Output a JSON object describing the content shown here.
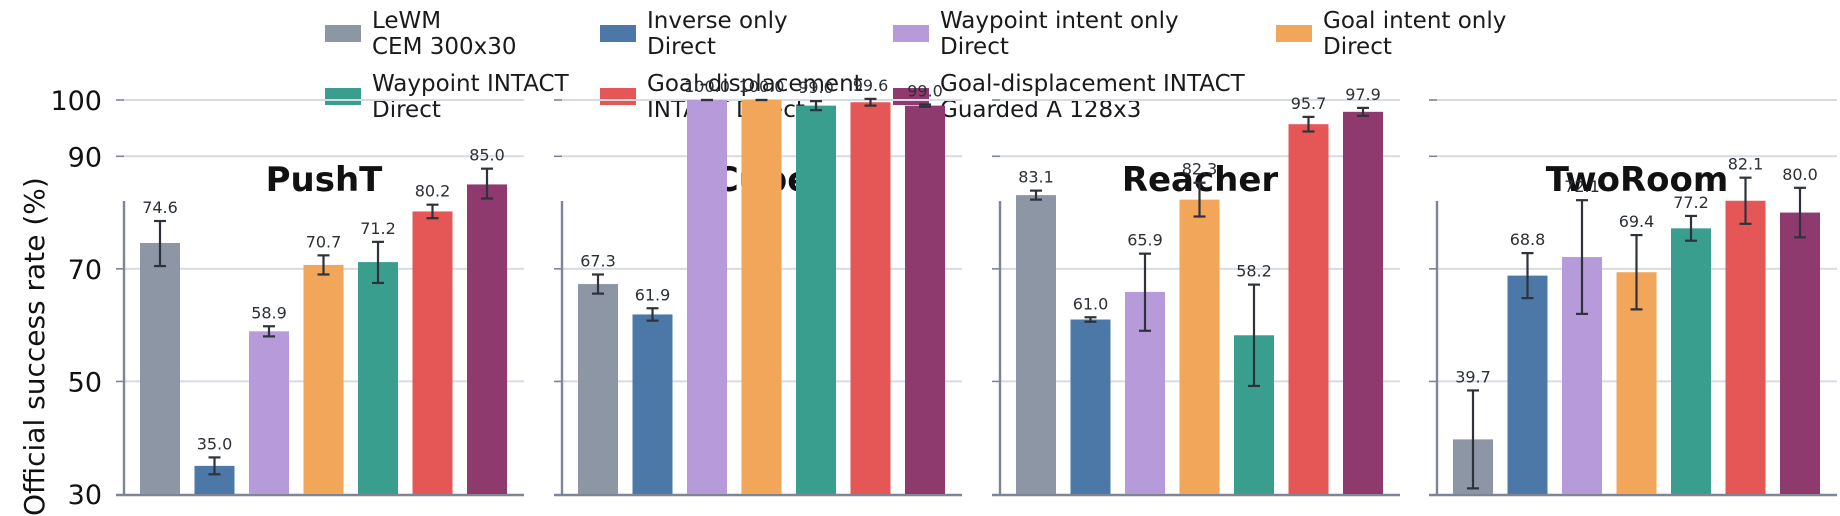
{
  "chart_data": {
    "type": "bar",
    "ylabel": "Official success rate (%)",
    "ylim": [
      30,
      103
    ],
    "yticks": [
      30,
      50,
      70,
      90,
      100
    ],
    "grid": "horizontal",
    "legend_position": "top",
    "series": [
      {
        "legend": [
          "LeWM",
          "CEM 300x30"
        ],
        "color": "#8c96a4"
      },
      {
        "legend": [
          "Inverse only",
          "Direct"
        ],
        "color": "#4c78a8"
      },
      {
        "legend": [
          "Waypoint intent only",
          "Direct"
        ],
        "color": "#b79ad9"
      },
      {
        "legend": [
          "Goal intent only",
          "Direct"
        ],
        "color": "#f2a65a"
      },
      {
        "legend": [
          "Waypoint INTACT",
          "Direct"
        ],
        "color": "#3a9e8e"
      },
      {
        "legend": [
          "Goal-displacement",
          "INTACT Direct"
        ],
        "color": "#e55656"
      },
      {
        "legend": [
          "Goal-displacement INTACT",
          "Guarded A 128x3"
        ],
        "color": "#8e3a6f"
      }
    ],
    "panels": [
      {
        "title": "PushT",
        "values": [
          74.6,
          35.0,
          58.9,
          70.7,
          71.2,
          80.2,
          85.0
        ],
        "labels": [
          "74.6",
          "35.0",
          "58.9",
          "70.7",
          "71.2",
          "80.2",
          "85.0"
        ],
        "err": [
          [
            70.5,
            78.5
          ],
          [
            33.5,
            36.5
          ],
          [
            58.0,
            59.8
          ],
          [
            69.0,
            72.4
          ],
          [
            67.5,
            74.8
          ],
          [
            79.0,
            81.4
          ],
          [
            82.5,
            87.8
          ]
        ]
      },
      {
        "title": "Cube",
        "values": [
          67.3,
          61.9,
          100.0,
          100.0,
          99.0,
          99.6,
          99.0
        ],
        "labels": [
          "67.3",
          "61.9",
          "100.0",
          "100.0",
          "99.0",
          "99.6",
          "99.0"
        ],
        "err": [
          [
            65.6,
            69.0
          ],
          [
            60.8,
            63.0
          ],
          [
            100.0,
            100.0
          ],
          [
            100.0,
            100.0
          ],
          [
            98.2,
            99.8
          ],
          [
            99.0,
            100.2
          ],
          [
            98.8,
            99.2
          ]
        ]
      },
      {
        "title": "Reacher",
        "values": [
          83.1,
          61.0,
          65.9,
          82.3,
          58.2,
          95.7,
          97.9
        ],
        "labels": [
          "83.1",
          "61.0",
          "65.9",
          "82.3",
          "58.2",
          "95.7",
          "97.9"
        ],
        "err": [
          [
            82.3,
            83.9
          ],
          [
            60.6,
            61.4
          ],
          [
            59.0,
            72.7
          ],
          [
            79.3,
            85.3
          ],
          [
            49.2,
            67.2
          ],
          [
            94.4,
            97.0
          ],
          [
            97.2,
            98.6
          ]
        ]
      },
      {
        "title": "TwoRoom",
        "values": [
          39.7,
          68.8,
          72.1,
          69.4,
          77.2,
          82.1,
          80.0
        ],
        "labels": [
          "39.7",
          "68.8",
          "72.1",
          "69.4",
          "77.2",
          "82.1",
          "80.0"
        ],
        "err": [
          [
            31.0,
            48.4
          ],
          [
            64.8,
            72.8
          ],
          [
            62.0,
            82.2
          ],
          [
            62.8,
            76.0
          ],
          [
            75.0,
            79.4
          ],
          [
            78.0,
            86.2
          ],
          [
            75.6,
            84.4
          ]
        ]
      }
    ]
  }
}
